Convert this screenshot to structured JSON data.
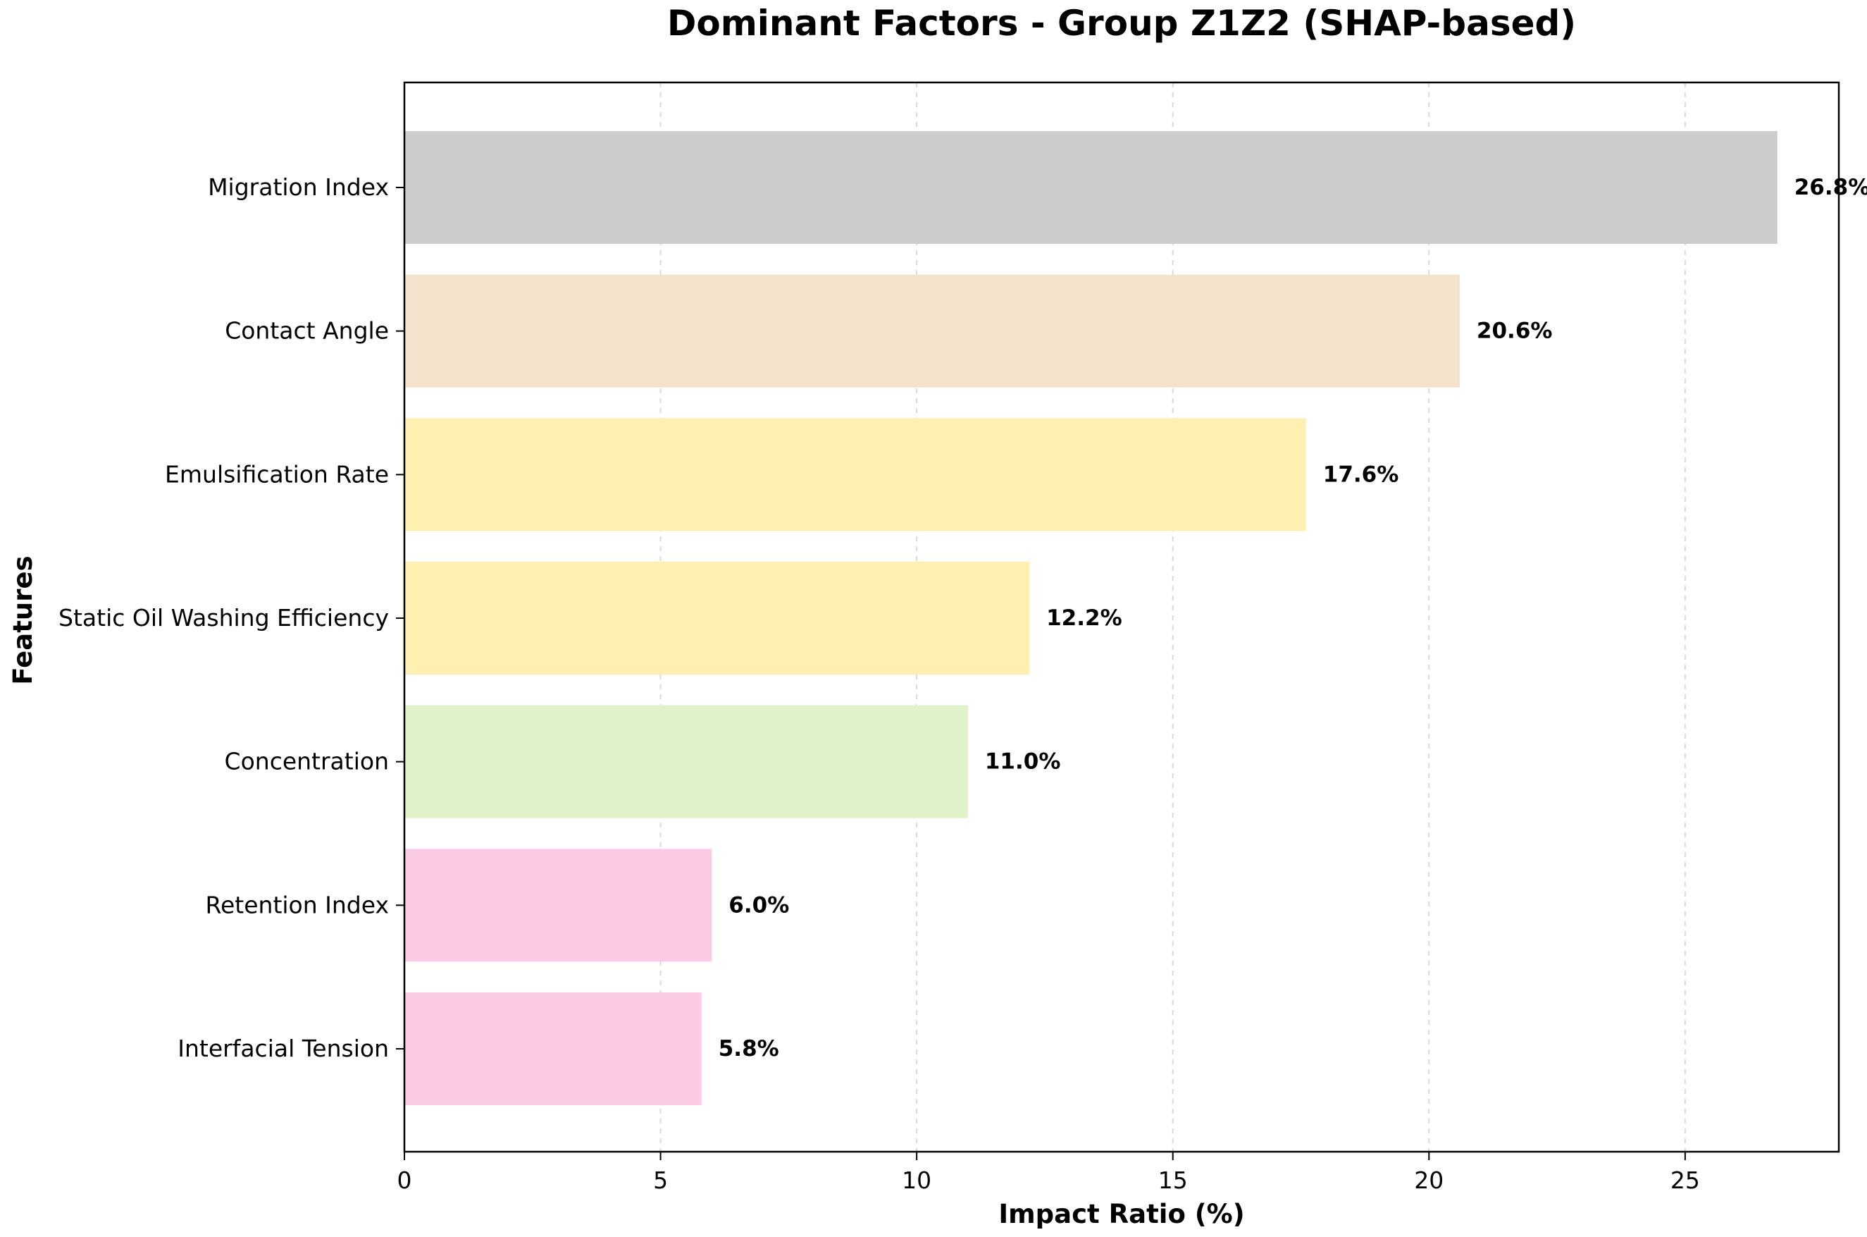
{
  "chart_data": {
    "type": "bar",
    "orientation": "horizontal",
    "title": "Dominant Factors - Group Z1Z2 (SHAP-based)",
    "xlabel": "Impact Ratio (%)",
    "ylabel": "Features",
    "xlim": [
      0,
      28
    ],
    "xticks": [
      0,
      5,
      10,
      15,
      20,
      25
    ],
    "grid": "vertical dashed",
    "categories": [
      "Migration Index",
      "Contact Angle",
      "Emulsification Rate",
      "Static Oil Washing Efficiency",
      "Concentration",
      "Retention Index",
      "Interfacial Tension"
    ],
    "values": [
      26.8,
      20.6,
      17.6,
      12.2,
      11.0,
      6.0,
      5.8
    ],
    "value_labels": [
      "26.8%",
      "20.6%",
      "17.6%",
      "12.2%",
      "11.0%",
      "6.0%",
      "5.8%"
    ],
    "colors": [
      "#cccccc",
      "#f5e2cc",
      "#fdf0b0",
      "#fdf0b0",
      "#e0f3c8",
      "#fccae4",
      "#fccae4"
    ]
  }
}
